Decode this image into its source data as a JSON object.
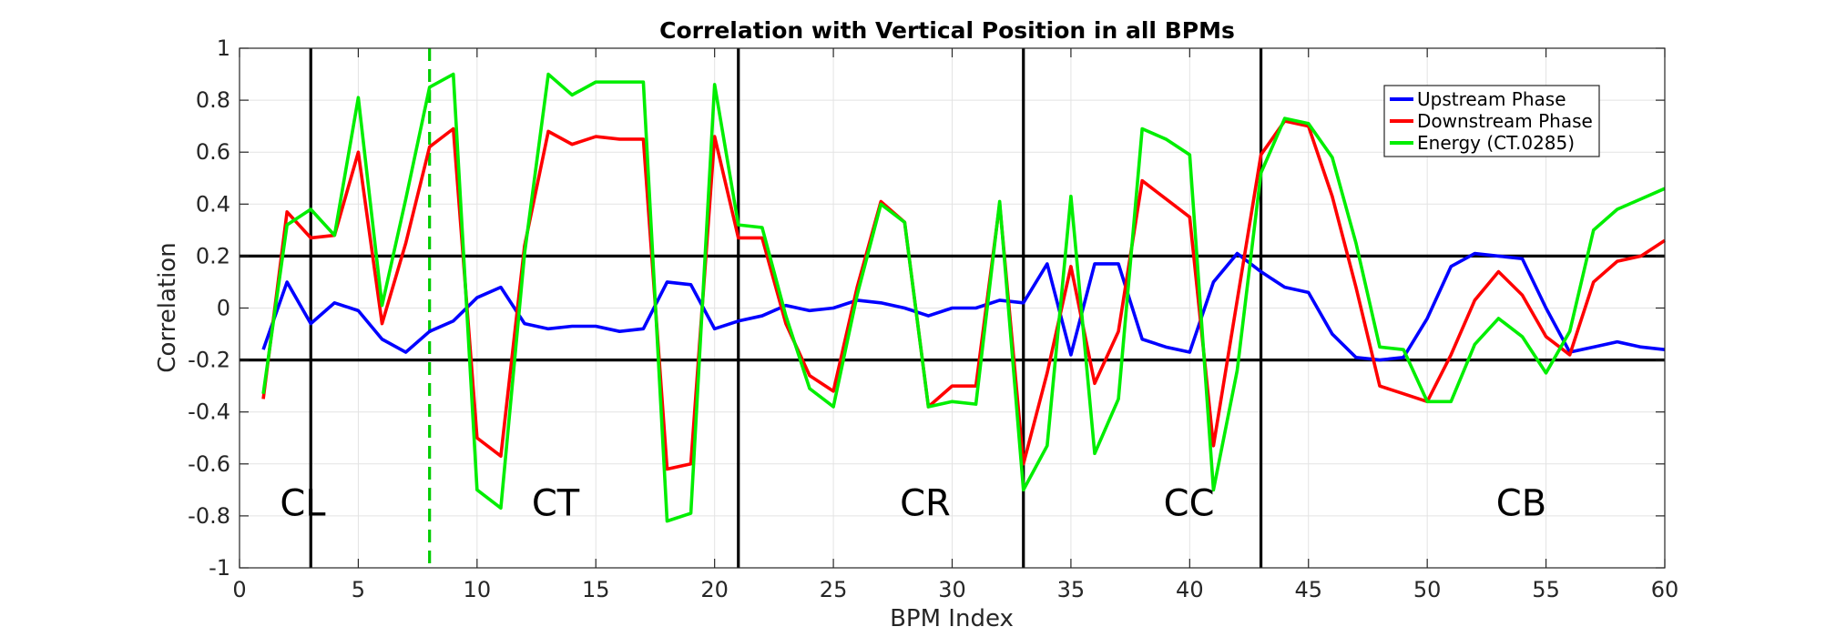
{
  "chart_data": {
    "type": "line",
    "title": "Correlation with Vertical Position in all BPMs",
    "xlabel": "BPM Index",
    "ylabel": "Correlation",
    "xlim": [
      0,
      60
    ],
    "ylim": [
      -1,
      1
    ],
    "xticks": [
      0,
      5,
      10,
      15,
      20,
      25,
      30,
      35,
      40,
      45,
      50,
      55,
      60
    ],
    "yticks": [
      -1,
      -0.8,
      -0.6,
      -0.4,
      -0.2,
      0,
      0.2,
      0.4,
      0.6,
      0.8,
      1
    ],
    "xtick_labels": [
      "0",
      "5",
      "10",
      "15",
      "20",
      "25",
      "30",
      "35",
      "40",
      "45",
      "50",
      "55",
      "60"
    ],
    "ytick_labels": [
      "-1",
      "-0.8",
      "-0.6",
      "-0.4",
      "-0.2",
      "0",
      "0.2",
      "0.4",
      "0.6",
      "0.8",
      "1"
    ],
    "grid": true,
    "legend_position": "top-right",
    "x": [
      1,
      2,
      3,
      4,
      5,
      6,
      7,
      8,
      9,
      10,
      11,
      12,
      13,
      14,
      15,
      16,
      17,
      18,
      19,
      20,
      21,
      22,
      23,
      24,
      25,
      26,
      27,
      28,
      29,
      30,
      31,
      32,
      33,
      34,
      35,
      36,
      37,
      38,
      39,
      40,
      41,
      42,
      43,
      44,
      45,
      46,
      47,
      48,
      49,
      50,
      51,
      52,
      53,
      54,
      55,
      56,
      57,
      58,
      59,
      60
    ],
    "series": [
      {
        "name": "Upstream Phase",
        "color": "#0000ff",
        "values": [
          -0.16,
          0.1,
          -0.06,
          0.02,
          -0.01,
          -0.12,
          -0.17,
          -0.09,
          -0.05,
          0.04,
          0.08,
          -0.06,
          -0.08,
          -0.07,
          -0.07,
          -0.09,
          -0.08,
          0.1,
          0.09,
          -0.08,
          -0.05,
          -0.03,
          0.01,
          -0.01,
          0.0,
          0.03,
          0.02,
          0.0,
          -0.03,
          0.0,
          0.0,
          0.03,
          0.02,
          0.17,
          -0.18,
          0.17,
          0.17,
          -0.12,
          -0.15,
          -0.17,
          0.1,
          0.21,
          0.14,
          0.08,
          0.06,
          -0.1,
          -0.19,
          -0.2,
          -0.19,
          -0.04,
          0.16,
          0.21,
          0.2,
          0.19,
          0.0,
          -0.17,
          -0.15,
          -0.13,
          -0.15,
          -0.16
        ]
      },
      {
        "name": "Downstream Phase",
        "color": "#ff0000",
        "values": [
          -0.35,
          0.37,
          0.27,
          0.28,
          0.6,
          -0.06,
          0.25,
          0.62,
          0.69,
          -0.5,
          -0.57,
          0.24,
          0.68,
          0.63,
          0.66,
          0.65,
          0.65,
          -0.62,
          -0.6,
          0.66,
          0.27,
          0.27,
          -0.06,
          -0.26,
          -0.32,
          0.08,
          0.41,
          0.33,
          -0.38,
          -0.3,
          -0.3,
          0.4,
          -0.6,
          -0.25,
          0.16,
          -0.29,
          -0.09,
          0.49,
          0.42,
          0.35,
          -0.53,
          0.03,
          0.59,
          0.72,
          0.7,
          0.43,
          0.08,
          -0.3,
          -0.33,
          -0.36,
          -0.18,
          0.03,
          0.14,
          0.05,
          -0.11,
          -0.18,
          0.1,
          0.18,
          0.2,
          0.26
        ]
      },
      {
        "name": "Energy (CT.0285)",
        "color": "#00ee00",
        "values": [
          -0.33,
          0.32,
          0.38,
          0.28,
          0.81,
          0.01,
          0.42,
          0.85,
          0.9,
          -0.7,
          -0.77,
          0.21,
          0.9,
          0.82,
          0.87,
          0.87,
          0.87,
          -0.82,
          -0.79,
          0.86,
          0.32,
          0.31,
          -0.03,
          -0.31,
          -0.38,
          0.05,
          0.4,
          0.33,
          -0.38,
          -0.36,
          -0.37,
          0.41,
          -0.7,
          -0.53,
          0.43,
          -0.56,
          -0.35,
          0.69,
          0.65,
          0.59,
          -0.7,
          -0.24,
          0.52,
          0.73,
          0.71,
          0.58,
          0.25,
          -0.15,
          -0.16,
          -0.36,
          -0.36,
          -0.14,
          -0.04,
          -0.11,
          -0.25,
          -0.09,
          0.3,
          0.38,
          0.42,
          0.46
        ]
      }
    ],
    "vertical_lines": [
      {
        "x": 3,
        "style": "solid",
        "color": "#000000"
      },
      {
        "x": 8,
        "style": "dashed",
        "color": "#00cc00"
      },
      {
        "x": 21,
        "style": "solid",
        "color": "#000000"
      },
      {
        "x": 33,
        "style": "solid",
        "color": "#000000"
      },
      {
        "x": 43,
        "style": "solid",
        "color": "#000000"
      }
    ],
    "horizontal_lines": [
      {
        "y": 0.2,
        "color": "#000000"
      },
      {
        "y": -0.2,
        "color": "#000000"
      }
    ],
    "region_labels": [
      {
        "text": "CL",
        "x": 1.7,
        "y": -0.75
      },
      {
        "text": "CT",
        "x": 12.3,
        "y": -0.75
      },
      {
        "text": "CR",
        "x": 27.8,
        "y": -0.75
      },
      {
        "text": "CC",
        "x": 38.9,
        "y": -0.75
      },
      {
        "text": "CB",
        "x": 52.9,
        "y": -0.75
      }
    ]
  }
}
